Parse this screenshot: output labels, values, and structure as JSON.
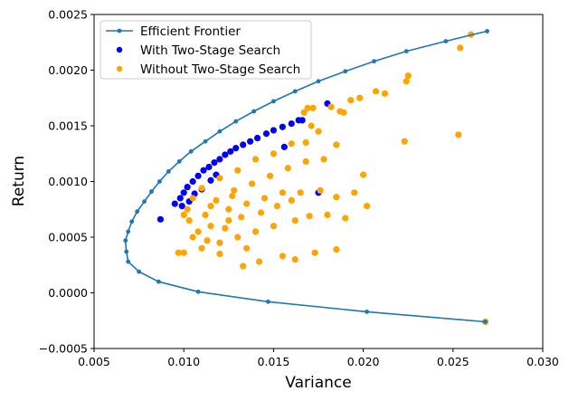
{
  "chart_data": {
    "type": "scatter",
    "xlabel": "Variance",
    "ylabel": "Return",
    "xlim": [
      0.005,
      0.03
    ],
    "ylim": [
      -0.0005,
      0.0025
    ],
    "xticks": [
      "0.005",
      "0.010",
      "0.015",
      "0.020",
      "0.025",
      "0.030"
    ],
    "yticks": [
      "−0.0005",
      "0.0000",
      "0.0005",
      "0.0010",
      "0.0015",
      "0.0020",
      "0.0025"
    ],
    "legend_position": "top-left",
    "colors": {
      "frontier": "#1f77b4",
      "with": "#0000ff",
      "without": "#ffa500"
    },
    "series": [
      {
        "name": "Efficient Frontier",
        "kind": "line",
        "points": [
          [
            0.0269,
            0.00235
          ],
          [
            0.0246,
            0.00226
          ],
          [
            0.0224,
            0.00217
          ],
          [
            0.0206,
            0.00208
          ],
          [
            0.019,
            0.00199
          ],
          [
            0.0175,
            0.0019
          ],
          [
            0.0162,
            0.00181
          ],
          [
            0.015,
            0.00172
          ],
          [
            0.0139,
            0.00163
          ],
          [
            0.0129,
            0.00154
          ],
          [
            0.012,
            0.00145
          ],
          [
            0.0112,
            0.00136
          ],
          [
            0.0104,
            0.00127
          ],
          [
            0.00975,
            0.00118
          ],
          [
            0.00915,
            0.00109
          ],
          [
            0.00865,
            0.001
          ],
          [
            0.0082,
            0.00091
          ],
          [
            0.0078,
            0.00082
          ],
          [
            0.0074,
            0.00073
          ],
          [
            0.0071,
            0.00064
          ],
          [
            0.0069,
            0.00055
          ],
          [
            0.00675,
            0.00047
          ],
          [
            0.0068,
            0.00037
          ],
          [
            0.0069,
            0.00028
          ],
          [
            0.0075,
            0.00019
          ],
          [
            0.0086,
            0.0001
          ],
          [
            0.0108,
            1e-05
          ],
          [
            0.0147,
            -8e-05
          ],
          [
            0.0202,
            -0.00017
          ],
          [
            0.0268,
            -0.00026
          ]
        ]
      },
      {
        "name": "With Two-Stage Search",
        "kind": "scatter",
        "points": [
          [
            0.0087,
            0.00066
          ],
          [
            0.0095,
            0.0008
          ],
          [
            0.0098,
            0.00085
          ],
          [
            0.01,
            0.0009
          ],
          [
            0.0102,
            0.00095
          ],
          [
            0.0105,
            0.001
          ],
          [
            0.0108,
            0.00105
          ],
          [
            0.0111,
            0.0011
          ],
          [
            0.0114,
            0.00113
          ],
          [
            0.0117,
            0.00117
          ],
          [
            0.012,
            0.0012
          ],
          [
            0.0123,
            0.00124
          ],
          [
            0.0126,
            0.00127
          ],
          [
            0.0129,
            0.0013
          ],
          [
            0.0133,
            0.00133
          ],
          [
            0.0137,
            0.00136
          ],
          [
            0.0141,
            0.00139
          ],
          [
            0.0146,
            0.00143
          ],
          [
            0.015,
            0.00146
          ],
          [
            0.0155,
            0.00149
          ],
          [
            0.016,
            0.00152
          ],
          [
            0.0164,
            0.00155
          ],
          [
            0.0166,
            0.00155
          ],
          [
            0.018,
            0.0017
          ],
          [
            0.0156,
            0.00131
          ],
          [
            0.0175,
            0.0009
          ],
          [
            0.0115,
            0.00101
          ],
          [
            0.011,
            0.00093
          ],
          [
            0.0106,
            0.00089
          ],
          [
            0.0103,
            0.00082
          ],
          [
            0.0099,
            0.00078
          ],
          [
            0.0118,
            0.00106
          ]
        ]
      },
      {
        "name": "Without Two-Stage Search",
        "kind": "scatter",
        "points": [
          [
            0.026,
            0.00232
          ],
          [
            0.0254,
            0.0022
          ],
          [
            0.0225,
            0.00195
          ],
          [
            0.0224,
            0.0019
          ],
          [
            0.0212,
            0.00179
          ],
          [
            0.0207,
            0.00181
          ],
          [
            0.0198,
            0.00175
          ],
          [
            0.0193,
            0.00173
          ],
          [
            0.0187,
            0.00163
          ],
          [
            0.0189,
            0.00162
          ],
          [
            0.0182,
            0.00167
          ],
          [
            0.0172,
            0.00166
          ],
          [
            0.0169,
            0.00166
          ],
          [
            0.0167,
            0.00162
          ],
          [
            0.0171,
            0.0015
          ],
          [
            0.0175,
            0.00145
          ],
          [
            0.0168,
            0.00135
          ],
          [
            0.016,
            0.00134
          ],
          [
            0.0185,
            0.00133
          ],
          [
            0.0253,
            0.00142
          ],
          [
            0.0223,
            0.00136
          ],
          [
            0.015,
            0.00125
          ],
          [
            0.014,
            0.0012
          ],
          [
            0.013,
            0.0011
          ],
          [
            0.012,
            0.00103
          ],
          [
            0.011,
            0.00094
          ],
          [
            0.0105,
            0.00085
          ],
          [
            0.0102,
            0.00075
          ],
          [
            0.01,
            0.0007
          ],
          [
            0.0112,
            0.0007
          ],
          [
            0.0125,
            0.00075
          ],
          [
            0.0135,
            0.0008
          ],
          [
            0.0145,
            0.00085
          ],
          [
            0.0155,
            0.0009
          ],
          [
            0.0165,
            0.0009
          ],
          [
            0.0176,
            0.00092
          ],
          [
            0.0185,
            0.00086
          ],
          [
            0.0195,
            0.0009
          ],
          [
            0.02,
            0.00106
          ],
          [
            0.0202,
            0.00078
          ],
          [
            0.019,
            0.00067
          ],
          [
            0.018,
            0.0007
          ],
          [
            0.017,
            0.00069
          ],
          [
            0.0162,
            0.00065
          ],
          [
            0.015,
            0.0006
          ],
          [
            0.014,
            0.00055
          ],
          [
            0.013,
            0.0005
          ],
          [
            0.012,
            0.00045
          ],
          [
            0.011,
            0.0004
          ],
          [
            0.01,
            0.00036
          ],
          [
            0.0097,
            0.00036
          ],
          [
            0.012,
            0.00035
          ],
          [
            0.0135,
            0.0004
          ],
          [
            0.0142,
            0.00028
          ],
          [
            0.0133,
            0.00024
          ],
          [
            0.0155,
            0.00033
          ],
          [
            0.0162,
            0.0003
          ],
          [
            0.0173,
            0.00036
          ],
          [
            0.0185,
            0.00039
          ],
          [
            0.0268,
            -0.00026
          ],
          [
            0.0115,
            0.0006
          ],
          [
            0.0125,
            0.00065
          ],
          [
            0.0108,
            0.00055
          ],
          [
            0.0118,
            0.00083
          ],
          [
            0.0128,
            0.00092
          ],
          [
            0.0138,
            0.00098
          ],
          [
            0.0148,
            0.00105
          ],
          [
            0.0158,
            0.00112
          ],
          [
            0.0168,
            0.00118
          ],
          [
            0.0178,
            0.0012
          ],
          [
            0.0105,
            0.0005
          ],
          [
            0.0113,
            0.00047
          ],
          [
            0.0123,
            0.00058
          ],
          [
            0.0132,
            0.00068
          ],
          [
            0.0143,
            0.00072
          ],
          [
            0.0152,
            0.00078
          ],
          [
            0.016,
            0.00083
          ],
          [
            0.0103,
            0.00065
          ],
          [
            0.0115,
            0.00078
          ],
          [
            0.0127,
            0.00087
          ]
        ]
      }
    ]
  }
}
